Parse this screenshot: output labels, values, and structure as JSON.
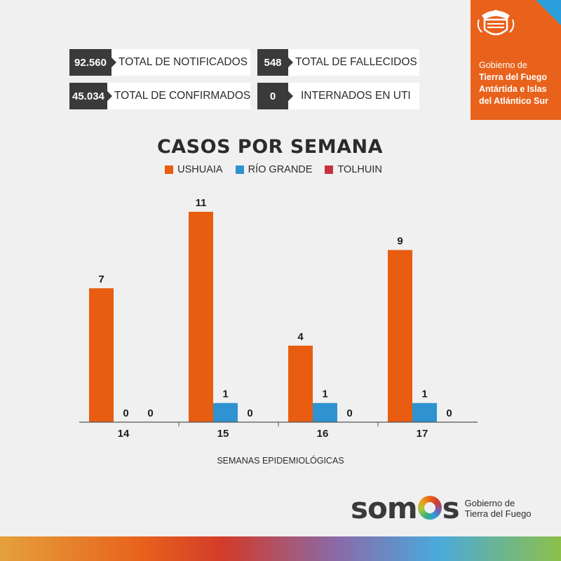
{
  "stats": [
    {
      "value": "92.560",
      "label": "TOTAL DE NOTIFICADOS"
    },
    {
      "value": "548",
      "label": "TOTAL DE FALLECIDOS"
    },
    {
      "value": "45.034",
      "label": "TOTAL DE CONFIRMADOS"
    },
    {
      "value": "0",
      "label": "INTERNADOS EN UTI"
    }
  ],
  "government": {
    "line1": "Gobierno de",
    "line2": "Tierra del Fuego",
    "line3": "Antártida e Islas",
    "line4": "del Atlántico Sur"
  },
  "footer": {
    "brand": "somos",
    "sub_line1": "Gobierno de",
    "sub_line2": "Tierra del Fuego"
  },
  "colors": {
    "ushuaia": "#e85d10",
    "rio_grande": "#2e93d0",
    "tolhuin": "#c8323c",
    "accent": "#e8621c"
  },
  "chart_data": {
    "type": "bar",
    "title": "CASOS POR SEMANA",
    "xlabel": "SEMANAS EPIDEMIOLÓGICAS",
    "ylabel": "",
    "categories": [
      "14",
      "15",
      "16",
      "17"
    ],
    "series": [
      {
        "name": "USHUAIA",
        "values": [
          7,
          11,
          4,
          9
        ]
      },
      {
        "name": "RÍO GRANDE",
        "values": [
          0,
          1,
          1,
          1
        ]
      },
      {
        "name": "TOLHUIN",
        "values": [
          0,
          0,
          0,
          0
        ]
      }
    ],
    "ylim": [
      0,
      11
    ],
    "grid": false,
    "legend": "top-center"
  }
}
